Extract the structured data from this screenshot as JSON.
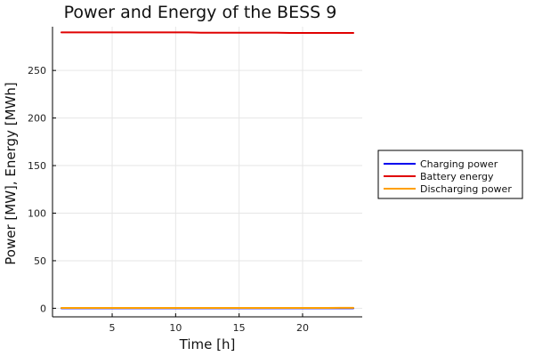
{
  "chart_data": {
    "type": "line",
    "title": "Power and Energy of the BESS 9",
    "xlabel": "Time [h]",
    "ylabel": "Power [MW], Energy [MWh]",
    "xlim": [
      0.3,
      24.7
    ],
    "ylim": [
      -9,
      296
    ],
    "xticks": [
      5,
      10,
      15,
      20
    ],
    "yticks": [
      0,
      50,
      100,
      150,
      200,
      250
    ],
    "grid": true,
    "legend_position": "right",
    "x": [
      1,
      2,
      3,
      4,
      5,
      6,
      7,
      8,
      9,
      10,
      11,
      12,
      13,
      14,
      15,
      16,
      17,
      18,
      19,
      20,
      21,
      22,
      23,
      24
    ],
    "series": [
      {
        "name": "Charging power",
        "color": "#0000ee",
        "values": [
          0,
          0,
          0,
          0,
          0,
          0,
          0,
          0,
          0,
          0,
          0,
          0,
          0,
          0,
          0,
          0,
          0,
          0,
          0,
          0,
          0,
          0,
          0,
          0
        ]
      },
      {
        "name": "Battery energy",
        "color": "#e00000",
        "values": [
          290,
          290,
          290,
          290,
          290,
          290,
          290,
          290,
          290,
          290,
          290,
          289.7,
          289.7,
          289.7,
          289.7,
          289.7,
          289.7,
          289.7,
          289.5,
          289.5,
          289.5,
          289.5,
          289.5,
          289.4
        ]
      },
      {
        "name": "Discharging power",
        "color": "#ffa000",
        "values": [
          0.3,
          0.3,
          0.3,
          0.3,
          0.3,
          0.3,
          0.3,
          0.3,
          0.3,
          0.3,
          0.3,
          0.3,
          0.3,
          0.3,
          0.3,
          0.3,
          0.3,
          0.3,
          0.3,
          0.3,
          0.3,
          0.3,
          0.5,
          0.5
        ]
      }
    ]
  }
}
